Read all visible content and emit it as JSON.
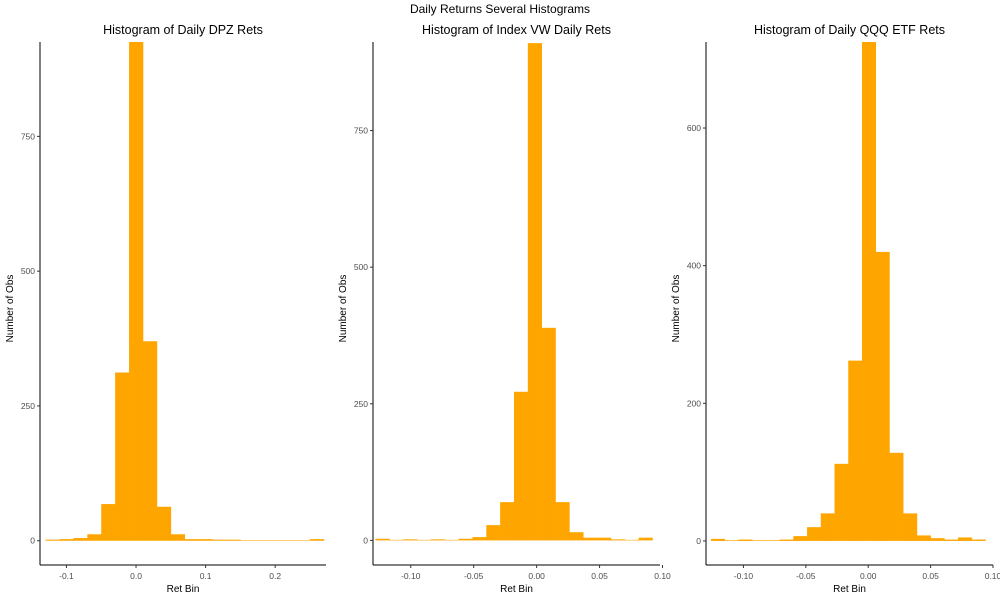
{
  "figure": {
    "suptitle": "Daily Returns Several Histograms"
  },
  "colors": {
    "bar_fill": "#FFA500",
    "axis_line": "#000000",
    "tick_label": "#4d4d4d"
  },
  "chart_data": [
    {
      "type": "bar",
      "title": "Histogram of Daily DPZ Rets",
      "xlabel": "Ret Bin",
      "ylabel": "Number of Obs",
      "xlim": [
        -0.138,
        0.273
      ],
      "ylim": [
        -45,
        925
      ],
      "xticks": [
        -0.1,
        0.0,
        0.1,
        0.2
      ],
      "xtick_labels": [
        "-0.1",
        "0.0",
        "0.1",
        "0.2"
      ],
      "yticks": [
        0,
        250,
        500,
        750
      ],
      "ytick_labels": [
        "0",
        "250",
        "500",
        "750"
      ],
      "bin_width": 0.02,
      "bins": [
        {
          "center": -0.12,
          "count": 2
        },
        {
          "center": -0.1,
          "count": 3
        },
        {
          "center": -0.08,
          "count": 5
        },
        {
          "center": -0.06,
          "count": 12
        },
        {
          "center": -0.04,
          "count": 68
        },
        {
          "center": -0.02,
          "count": 312
        },
        {
          "center": 0.0,
          "count": 925
        },
        {
          "center": 0.02,
          "count": 370
        },
        {
          "center": 0.04,
          "count": 63
        },
        {
          "center": 0.06,
          "count": 12
        },
        {
          "center": 0.08,
          "count": 3
        },
        {
          "center": 0.1,
          "count": 3
        },
        {
          "center": 0.12,
          "count": 2
        },
        {
          "center": 0.14,
          "count": 2
        },
        {
          "center": 0.16,
          "count": 1
        },
        {
          "center": 0.18,
          "count": 1
        },
        {
          "center": 0.2,
          "count": 1
        },
        {
          "center": 0.22,
          "count": 1
        },
        {
          "center": 0.24,
          "count": 1
        },
        {
          "center": 0.26,
          "count": 3
        }
      ]
    },
    {
      "type": "bar",
      "title": "Histogram of Index VW Daily Rets",
      "xlabel": "Ret Bin",
      "ylabel": "Number of Obs",
      "xlim": [
        -0.13,
        0.098
      ],
      "ylim": [
        -45,
        912
      ],
      "xticks": [
        -0.1,
        -0.05,
        0.0,
        0.05,
        0.1
      ],
      "xtick_labels": [
        "-0.10",
        "-0.05",
        "0.00",
        "0.05",
        "0.10"
      ],
      "yticks": [
        0,
        250,
        500,
        750
      ],
      "ytick_labels": [
        "0",
        "250",
        "500",
        "750"
      ],
      "bin_width": 0.011,
      "bins": [
        {
          "center": -0.1225,
          "count": 3
        },
        {
          "center": -0.1115,
          "count": 1
        },
        {
          "center": -0.1005,
          "count": 2
        },
        {
          "center": -0.0895,
          "count": 1
        },
        {
          "center": -0.0785,
          "count": 2
        },
        {
          "center": -0.0675,
          "count": 1
        },
        {
          "center": -0.0565,
          "count": 3
        },
        {
          "center": -0.0455,
          "count": 6
        },
        {
          "center": -0.0345,
          "count": 28
        },
        {
          "center": -0.0235,
          "count": 70
        },
        {
          "center": -0.0125,
          "count": 272
        },
        {
          "center": -0.0015,
          "count": 910
        },
        {
          "center": 0.0095,
          "count": 389
        },
        {
          "center": 0.0205,
          "count": 70
        },
        {
          "center": 0.0315,
          "count": 15
        },
        {
          "center": 0.0425,
          "count": 5
        },
        {
          "center": 0.0535,
          "count": 5
        },
        {
          "center": 0.0645,
          "count": 2
        },
        {
          "center": 0.0755,
          "count": 1
        },
        {
          "center": 0.0865,
          "count": 5
        }
      ]
    },
    {
      "type": "bar",
      "title": "Histogram of Daily QQQ ETF Rets",
      "xlabel": "Ret Bin",
      "ylabel": "Number of Obs",
      "xlim": [
        -0.13,
        0.1
      ],
      "ylim": [
        -35,
        725
      ],
      "xticks": [
        -0.1,
        -0.05,
        0.0,
        0.05,
        0.1
      ],
      "xtick_labels": [
        "-0.10",
        "-0.05",
        "0.00",
        "0.05",
        "0.10"
      ],
      "yticks": [
        0,
        200,
        400,
        600
      ],
      "ytick_labels": [
        "0",
        "200",
        "400",
        "600"
      ],
      "bin_width": 0.011,
      "bins": [
        {
          "center": -0.1205,
          "count": 3
        },
        {
          "center": -0.1095,
          "count": 1
        },
        {
          "center": -0.0985,
          "count": 2
        },
        {
          "center": -0.0875,
          "count": 1
        },
        {
          "center": -0.0765,
          "count": 1
        },
        {
          "center": -0.0655,
          "count": 2
        },
        {
          "center": -0.0545,
          "count": 7
        },
        {
          "center": -0.0435,
          "count": 20
        },
        {
          "center": -0.0325,
          "count": 40
        },
        {
          "center": -0.0215,
          "count": 112
        },
        {
          "center": -0.0105,
          "count": 262
        },
        {
          "center": 0.0005,
          "count": 725
        },
        {
          "center": 0.0115,
          "count": 420
        },
        {
          "center": 0.0225,
          "count": 128
        },
        {
          "center": 0.0335,
          "count": 40
        },
        {
          "center": 0.0445,
          "count": 8
        },
        {
          "center": 0.0555,
          "count": 4
        },
        {
          "center": 0.0665,
          "count": 2
        },
        {
          "center": 0.0775,
          "count": 5
        },
        {
          "center": 0.0885,
          "count": 2
        }
      ]
    }
  ]
}
